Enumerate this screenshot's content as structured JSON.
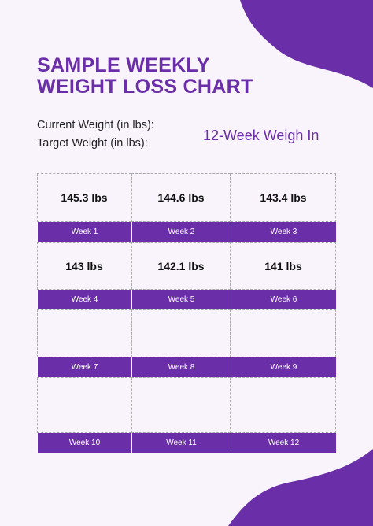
{
  "header": {
    "title_lines": [
      "SAMPLE WEEKLY",
      "WEIGHT LOSS CHART"
    ],
    "current_weight_label": "Current Weight (in lbs):",
    "target_weight_label": "Target Weight (in lbs):",
    "subtitle": "12-Week Weigh In"
  },
  "table": {
    "cells": [
      {
        "weight": "145.3 lbs",
        "week": "Week 1"
      },
      {
        "weight": "144.6 lbs",
        "week": "Week 2"
      },
      {
        "weight": "143.4 lbs",
        "week": "Week 3"
      },
      {
        "weight": "143 lbs",
        "week": "Week 4"
      },
      {
        "weight": "142.1 lbs",
        "week": "Week 5"
      },
      {
        "weight": "141 lbs",
        "week": "Week 6"
      },
      {
        "week": "Week 7"
      },
      {
        "week": "Week 8"
      },
      {
        "week": "Week 9"
      },
      {
        "week": "Week 10"
      },
      {
        "week": "Week 11"
      },
      {
        "week": "Week 12"
      }
    ]
  }
}
